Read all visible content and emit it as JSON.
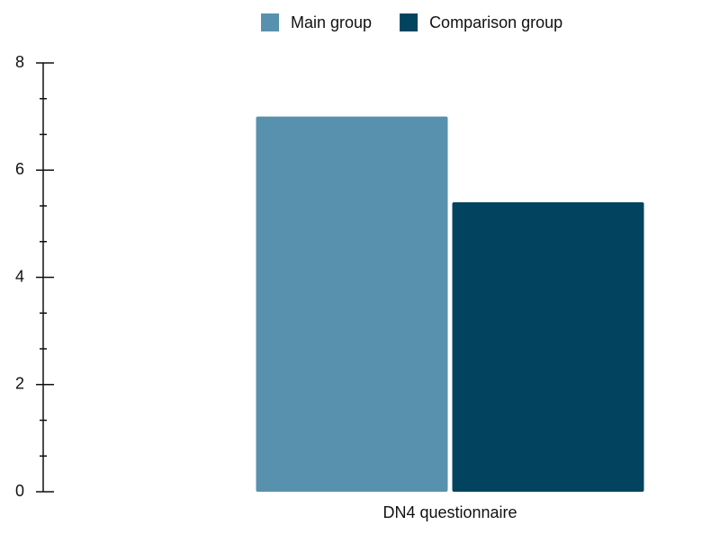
{
  "chart_data": {
    "type": "bar",
    "categories": [
      "DN4 questionnaire"
    ],
    "series": [
      {
        "name": "Main group",
        "color": "#5891ae",
        "values": [
          7.0
        ]
      },
      {
        "name": "Comparison group",
        "color": "#02445f",
        "values": [
          5.4
        ]
      }
    ],
    "ylim": [
      0,
      8
    ],
    "yticks": [
      0,
      2,
      4,
      6,
      8
    ],
    "minor_divisions": 3,
    "legend": "top"
  }
}
